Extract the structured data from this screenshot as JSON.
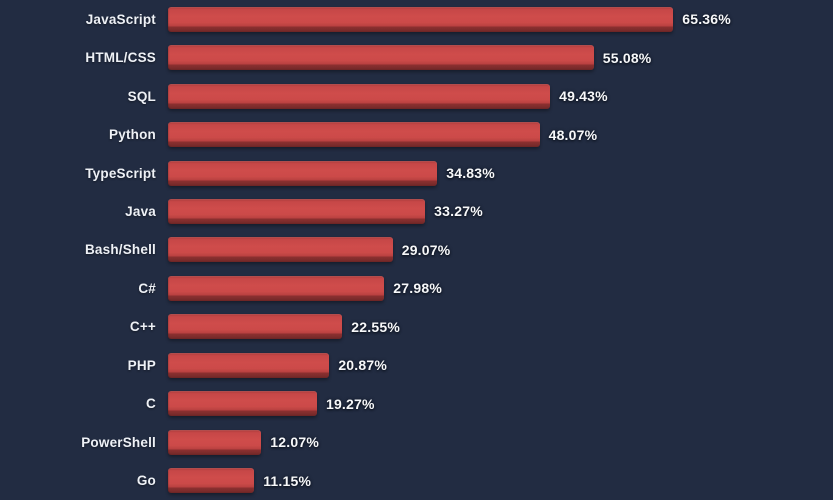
{
  "chart_data": {
    "type": "bar",
    "orientation": "horizontal",
    "title": "",
    "xlabel": "",
    "ylabel": "",
    "grid": false,
    "legend": false,
    "xlim": [
      0,
      67
    ],
    "categories": [
      "JavaScript",
      "HTML/CSS",
      "SQL",
      "Python",
      "TypeScript",
      "Java",
      "Bash/Shell",
      "C#",
      "C++",
      "PHP",
      "C",
      "PowerShell",
      "Go"
    ],
    "values": [
      65.36,
      55.08,
      49.43,
      48.07,
      34.83,
      33.27,
      29.07,
      27.98,
      22.55,
      20.87,
      19.27,
      12.07,
      11.15
    ],
    "value_labels": [
      "65.36%",
      "55.08%",
      "49.43%",
      "48.07%",
      "34.83%",
      "33.27%",
      "29.07%",
      "27.98%",
      "22.55%",
      "20.87%",
      "19.27%",
      "12.07%",
      "11.15%"
    ],
    "colors": {
      "background": "#222c42",
      "bar_main": "#cc4a49",
      "bar_dark_foot": "#7b2b2b",
      "label_text": "#eef1f6",
      "value_text": "#f7f8fa"
    }
  }
}
